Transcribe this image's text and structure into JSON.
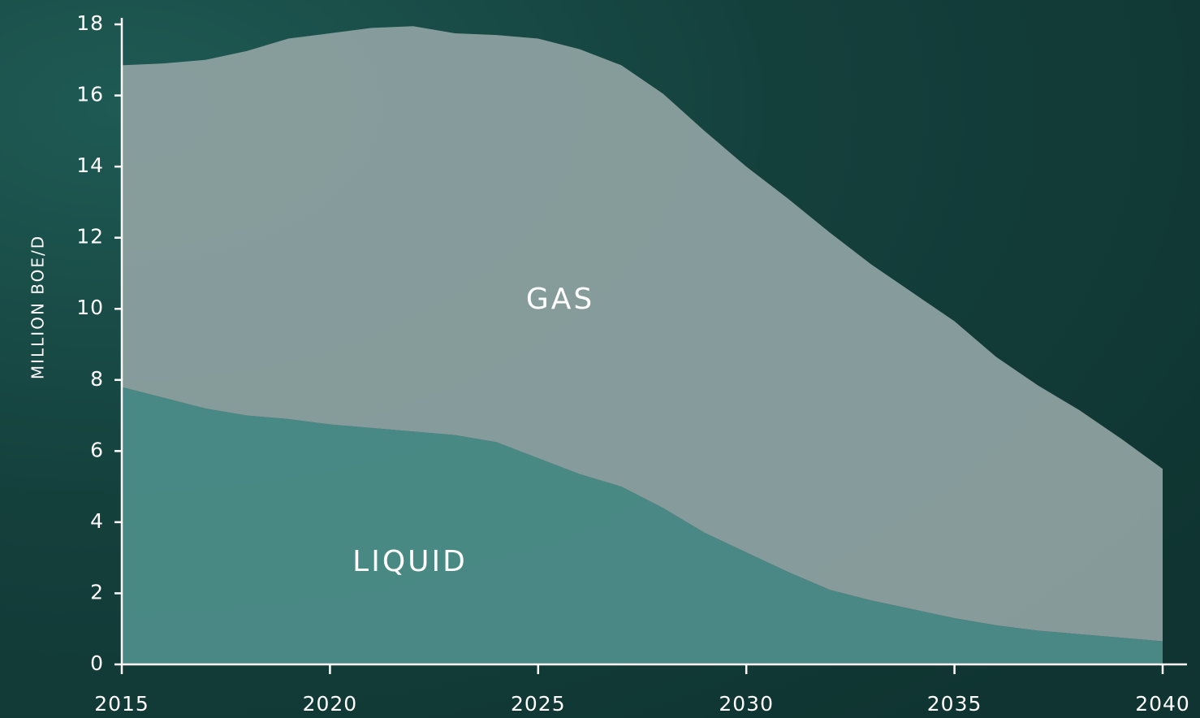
{
  "chart_data": {
    "type": "stacked-area",
    "y_label": "MILLION BOE/D",
    "x": [
      2015,
      2016,
      2017,
      2018,
      2019,
      2020,
      2021,
      2022,
      2023,
      2024,
      2025,
      2026,
      2027,
      2028,
      2029,
      2030,
      2031,
      2032,
      2033,
      2034,
      2035,
      2036,
      2037,
      2038,
      2039,
      2040
    ],
    "series": [
      {
        "name": "LIQUID",
        "color": "#4e8f8b",
        "values": [
          7.8,
          7.5,
          7.2,
          7.0,
          6.9,
          6.75,
          6.65,
          6.55,
          6.45,
          6.25,
          5.8,
          5.35,
          5.0,
          4.4,
          3.7,
          3.15,
          2.6,
          2.1,
          1.8,
          1.55,
          1.3,
          1.1,
          0.95,
          0.85,
          0.75,
          0.65
        ]
      },
      {
        "name": "GAS",
        "color": "#8fa3a3",
        "values": [
          9.05,
          9.4,
          9.8,
          10.25,
          10.7,
          11.0,
          11.25,
          11.4,
          11.3,
          11.45,
          11.8,
          11.95,
          11.85,
          11.65,
          11.3,
          10.85,
          10.5,
          10.05,
          9.45,
          8.9,
          8.35,
          7.55,
          6.9,
          6.3,
          5.6,
          4.85
        ]
      }
    ],
    "xlim": [
      2015,
      2040
    ],
    "xticks": [
      2015,
      2020,
      2025,
      2030,
      2035,
      2040
    ],
    "ylim": [
      0,
      18
    ],
    "yticks": [
      0,
      2,
      4,
      6,
      8,
      10,
      12,
      14,
      16,
      18
    ]
  }
}
